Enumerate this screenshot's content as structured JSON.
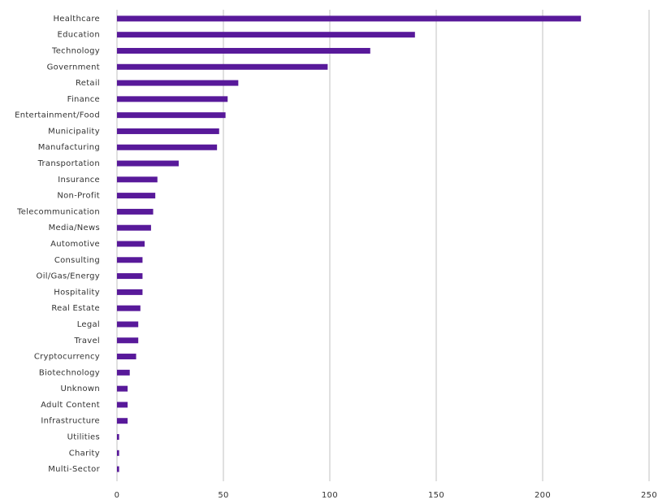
{
  "chart_data": {
    "type": "bar",
    "orientation": "horizontal",
    "categories": [
      "Healthcare",
      "Education",
      "Technology",
      "Government",
      "Retail",
      "Finance",
      "Entertainment/Food",
      "Municipality",
      "Manufacturing",
      "Transportation",
      "Insurance",
      "Non-Profit",
      "Telecommunication",
      "Media/News",
      "Automotive",
      "Consulting",
      "Oil/Gas/Energy",
      "Hospitality",
      "Real Estate",
      "Legal",
      "Travel",
      "Cryptocurrency",
      "Biotechnology",
      "Unknown",
      "Adult Content",
      "Infrastructure",
      "Utilities",
      "Charity",
      "Multi-Sector"
    ],
    "values": [
      218,
      140,
      119,
      99,
      57,
      52,
      51,
      48,
      47,
      29,
      19,
      18,
      17,
      16,
      13,
      12,
      12,
      12,
      11,
      10,
      10,
      9,
      6,
      5,
      5,
      5,
      1,
      1,
      1
    ],
    "color": "#58199a",
    "xlim": [
      0,
      250
    ],
    "xticks": [
      0,
      50,
      100,
      150,
      200,
      250
    ],
    "grid": true
  }
}
